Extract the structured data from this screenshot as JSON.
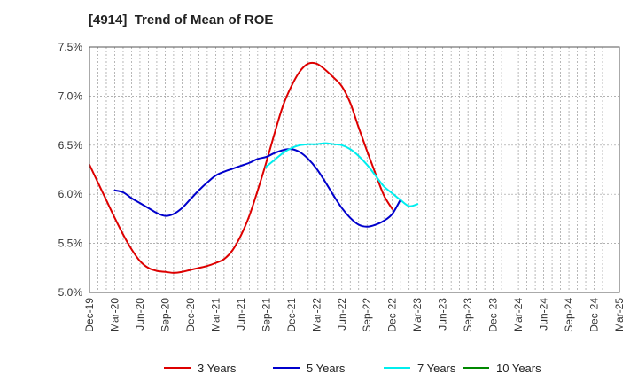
{
  "chart_data": {
    "type": "line",
    "title": "[4914]  Trend of Mean of ROE",
    "xlabel": "",
    "ylabel": "",
    "ylim": [
      5.0,
      7.5
    ],
    "grid": true,
    "legend_placement": "bottom",
    "x_tick_labels": [
      "Dec-19",
      "Mar-20",
      "Jun-20",
      "Sep-20",
      "Dec-20",
      "Mar-21",
      "Jun-21",
      "Sep-21",
      "Dec-21",
      "Mar-22",
      "Jun-22",
      "Sep-22",
      "Dec-22",
      "Mar-23",
      "Jun-23",
      "Sep-23",
      "Dec-23",
      "Mar-24",
      "Jun-24",
      "Sep-24",
      "Dec-24",
      "Mar-25"
    ],
    "y_tick_labels": [
      "5.0%",
      "5.5%",
      "6.0%",
      "6.5%",
      "7.0%",
      "7.5%"
    ],
    "y_ticks": [
      5.0,
      5.5,
      6.0,
      6.5,
      7.0,
      7.5
    ],
    "series": [
      {
        "name": "3 Years",
        "color": "#dd0000",
        "start_index": 0,
        "values": [
          6.3,
          6.12,
          5.94,
          5.76,
          5.59,
          5.44,
          5.32,
          5.25,
          5.22,
          5.21,
          5.2,
          5.21,
          5.23,
          5.25,
          5.27,
          5.3,
          5.34,
          5.43,
          5.58,
          5.78,
          6.04,
          6.32,
          6.62,
          6.9,
          7.1,
          7.25,
          7.33,
          7.33,
          7.27,
          7.19,
          7.1,
          6.93,
          6.68,
          6.44,
          6.21,
          5.99,
          5.85
        ]
      },
      {
        "name": "5 Years",
        "color": "#0000cc",
        "start_index": 3,
        "values": [
          6.04,
          6.02,
          5.96,
          5.91,
          5.86,
          5.81,
          5.78,
          5.8,
          5.86,
          5.95,
          6.04,
          6.12,
          6.19,
          6.23,
          6.26,
          6.29,
          6.32,
          6.36,
          6.38,
          6.42,
          6.45,
          6.46,
          6.43,
          6.36,
          6.26,
          6.13,
          5.99,
          5.86,
          5.76,
          5.69,
          5.67,
          5.69,
          5.73,
          5.8,
          5.95
        ]
      },
      {
        "name": "7 Years",
        "color": "#00eeee",
        "start_index": 21,
        "values": [
          6.28,
          6.35,
          6.42,
          6.47,
          6.5,
          6.51,
          6.51,
          6.52,
          6.51,
          6.5,
          6.46,
          6.39,
          6.3,
          6.19,
          6.08,
          6.01,
          5.94,
          5.88,
          5.9
        ]
      },
      {
        "name": "10 Years",
        "color": "#008800",
        "start_index": 0,
        "values": []
      }
    ]
  }
}
